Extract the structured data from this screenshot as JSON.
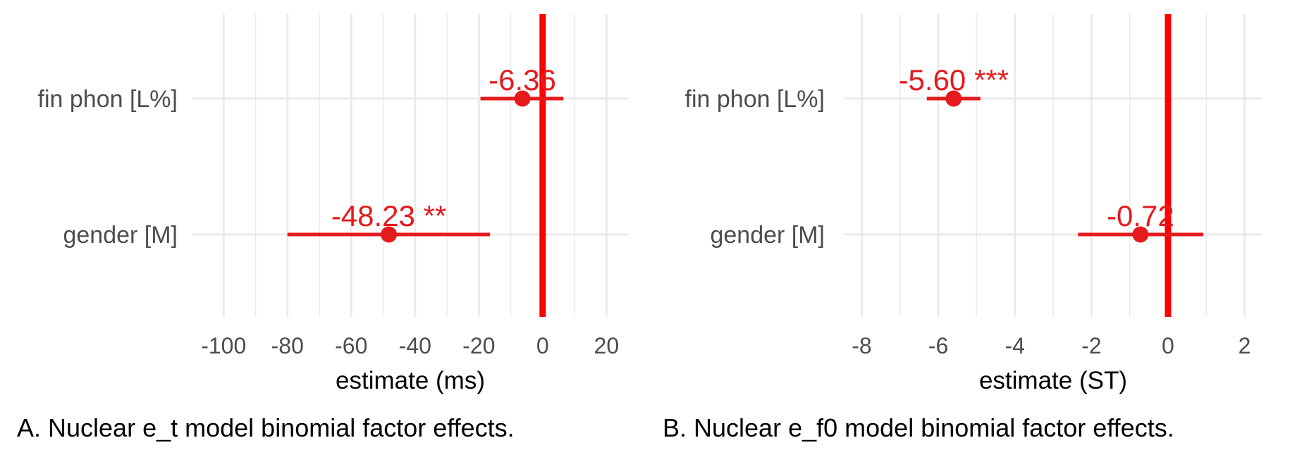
{
  "chart_data": [
    {
      "type": "forest",
      "caption": "A. Nuclear e_t model binomial factor effects.",
      "xlabel": "estimate (ms)",
      "xlim": [
        -110,
        27
      ],
      "xticks": [
        -100,
        -80,
        -60,
        -40,
        -20,
        0,
        20
      ],
      "xtick_labels": [
        "-100",
        "-80",
        "-60",
        "-40",
        "-20",
        "0",
        "20"
      ],
      "grid": true,
      "reference_line": 0,
      "colors": {
        "estimate": "#e41a1c",
        "reference": "#ff0000",
        "grid": "#ebebeb"
      },
      "terms": [
        {
          "name": "fin phon [L%]",
          "estimate": -6.36,
          "ci_low": -19.5,
          "ci_high": 6.5,
          "label": "-6.36"
        },
        {
          "name": "gender [M]",
          "estimate": -48.23,
          "ci_low": -80,
          "ci_high": -16.5,
          "label": "-48.23 **"
        }
      ]
    },
    {
      "type": "forest",
      "caption": "B. Nuclear e_f0 model binomial factor effects.",
      "xlabel": "estimate (ST)",
      "xlim": [
        -8.45,
        2.45
      ],
      "xticks": [
        -8,
        -6,
        -4,
        -2,
        0,
        2
      ],
      "xtick_labels": [
        "-8",
        "-6",
        "-4",
        "-2",
        "0",
        "2"
      ],
      "grid": true,
      "reference_line": 0,
      "colors": {
        "estimate": "#e41a1c",
        "reference": "#ff0000",
        "grid": "#ebebeb"
      },
      "terms": [
        {
          "name": "fin phon [L%]",
          "estimate": -5.6,
          "ci_low": -6.3,
          "ci_high": -4.9,
          "label": "-5.60 ***"
        },
        {
          "name": "gender [M]",
          "estimate": -0.72,
          "ci_low": -2.35,
          "ci_high": 0.92,
          "label": "-0.72"
        }
      ]
    }
  ]
}
